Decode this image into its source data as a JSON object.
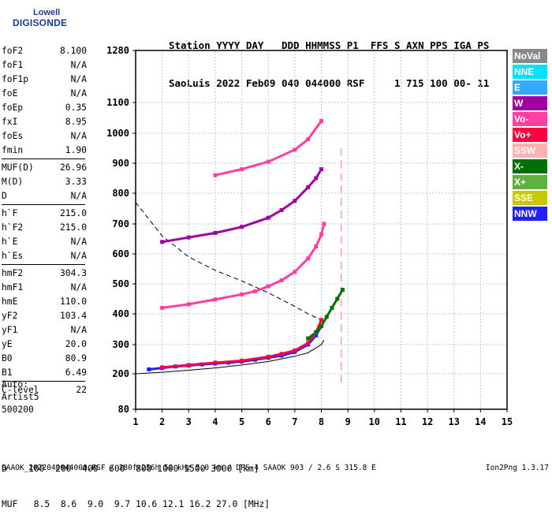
{
  "logo": {
    "line1": "Lowell",
    "line2": "DIGISONDE"
  },
  "header": {
    "line1": "Station YYYY DAY   DDD HHMMSS P1  FFS S AXN PPS IGA PS",
    "line2": "SaoLuis 2022 Feb09 040 044000 RSF     1 715 100 00- 11"
  },
  "params": [
    {
      "k": "foF2",
      "v": "8.100"
    },
    {
      "k": "foF1",
      "v": "N/A"
    },
    {
      "k": "foF1p",
      "v": "N/A"
    },
    {
      "k": "foE",
      "v": "N/A"
    },
    {
      "k": "foEp",
      "v": "0.35"
    },
    {
      "k": "fxI",
      "v": "8.95"
    },
    {
      "k": "foEs",
      "v": "N/A"
    },
    {
      "k": "fmin",
      "v": "1.90"
    },
    {
      "sep": true
    },
    {
      "k": "MUF(D)",
      "v": "26.96"
    },
    {
      "k": "M(D)",
      "v": "3.33"
    },
    {
      "k": "D",
      "v": "N/A"
    },
    {
      "sep": true
    },
    {
      "k": "h`F",
      "v": "215.0"
    },
    {
      "k": "h`F2",
      "v": "215.0"
    },
    {
      "k": "h`E",
      "v": "N/A"
    },
    {
      "k": "h`Es",
      "v": "N/A"
    },
    {
      "sep": true
    },
    {
      "k": "hmF2",
      "v": "304.3"
    },
    {
      "k": "hmF1",
      "v": "N/A"
    },
    {
      "k": "hmE",
      "v": "110.0"
    },
    {
      "k": "yF2",
      "v": "103.4"
    },
    {
      "k": "yF1",
      "v": "N/A"
    },
    {
      "k": "yE",
      "v": "20.0"
    },
    {
      "k": "B0",
      "v": "80.9"
    },
    {
      "k": "B1",
      "v": "6.49"
    },
    {
      "sep": true
    },
    {
      "k": "C-level",
      "v": "22"
    }
  ],
  "auto": {
    "line1": "Auto:",
    "line2": "Artist5",
    "line3": "500200"
  },
  "legend": [
    {
      "label": "NoVal",
      "color": "#888888"
    },
    {
      "label": "NNE",
      "color": "#00e0ff"
    },
    {
      "label": "E",
      "color": "#33aaff"
    },
    {
      "label": "W",
      "color": "#a000a0"
    },
    {
      "label": "Vo-",
      "color": "#ff40a0"
    },
    {
      "label": "Vo+",
      "color": "#ff0040"
    },
    {
      "label": "SSW",
      "color": "#ffb0b0"
    },
    {
      "label": "X-",
      "color": "#007000"
    },
    {
      "label": "X+",
      "color": "#60b040"
    },
    {
      "label": "SSE",
      "color": "#c8c800"
    },
    {
      "label": "NNW",
      "color": "#2020ff"
    }
  ],
  "footer": {
    "line1": "D    100  200  400  600  800 1000 1500 3000 [km]",
    "line2": "MUF   8.5  8.6  9.0  9.7 10.6 12.1 16.2 27.0 [MHz]"
  },
  "bottom": {
    "file": "SAAOK_2022040044000.RSF / 280fx256h 50 kHz 5.0 km / DPS-4 SAAOK 903 / 2.6 S 315.8 E",
    "version": "Ion2Png 1.3.17"
  },
  "chart_data": {
    "type": "scatter",
    "x_ticks": [
      1,
      2,
      3,
      4,
      5,
      6,
      7,
      8,
      9,
      10,
      11,
      12,
      13,
      14,
      15
    ],
    "y_ticks": [
      80,
      200,
      300,
      400,
      500,
      600,
      700,
      800,
      900,
      1000,
      1100,
      1280
    ],
    "xlim": [
      1,
      15
    ],
    "ylim": [
      80,
      1280
    ],
    "grid": true,
    "series": [
      {
        "name": "NNW",
        "color": "#2020ff",
        "x": [
          1.5,
          2.0,
          2.5,
          3.0,
          3.5,
          4.0,
          4.5,
          5.0,
          5.5,
          6.0,
          6.5,
          7.0,
          7.5,
          7.8,
          8.0
        ],
        "y": [
          215,
          220,
          225,
          228,
          232,
          235,
          238,
          242,
          248,
          255,
          262,
          275,
          300,
          330,
          360
        ]
      },
      {
        "name": "Vo+",
        "color": "#ff0040",
        "x": [
          2.0,
          3.0,
          4.0,
          5.0,
          6.0,
          6.5,
          7.0,
          7.5,
          7.8,
          8.0
        ],
        "y": [
          222,
          230,
          238,
          245,
          258,
          268,
          280,
          305,
          340,
          380
        ]
      },
      {
        "name": "Vo-",
        "color": "#ff40a0",
        "x": [
          2.0,
          3.0,
          4.0,
          5.0,
          5.5,
          6.0,
          6.5,
          7.0,
          7.5,
          7.8,
          8.0,
          8.1
        ],
        "y": [
          420,
          432,
          448,
          465,
          475,
          492,
          512,
          540,
          585,
          625,
          665,
          700
        ]
      },
      {
        "name": "X-",
        "color": "#007000",
        "x": [
          7.5,
          7.8,
          8.0,
          8.2,
          8.4,
          8.6,
          8.8
        ],
        "y": [
          320,
          340,
          360,
          390,
          420,
          450,
          480
        ]
      },
      {
        "name": "W",
        "color": "#a000a0",
        "x": [
          2.0,
          3.0,
          4.0,
          5.0,
          6.0,
          6.5,
          7.0,
          7.5,
          7.8,
          8.0
        ],
        "y": [
          640,
          655,
          670,
          690,
          720,
          745,
          775,
          820,
          850,
          880
        ]
      },
      {
        "name": "Vo-",
        "color": "#ff40a0",
        "x": [
          4.0,
          5.0,
          6.0,
          7.0,
          7.5,
          8.0
        ],
        "y": [
          860,
          880,
          905,
          945,
          980,
          1040
        ]
      }
    ],
    "trace_model": {
      "x": [
        1.0,
        2.0,
        3.0,
        4.0,
        5.0,
        6.0,
        7.0,
        7.5,
        8.0,
        8.1
      ],
      "y": [
        200,
        205,
        212,
        220,
        230,
        242,
        260,
        272,
        300,
        315
      ]
    },
    "dashed_curve": {
      "x": [
        1.0,
        2.0,
        3.0,
        4.0,
        5.0,
        6.0,
        7.0,
        7.5,
        8.0
      ],
      "y": [
        770,
        660,
        590,
        545,
        510,
        470,
        425,
        400,
        380
      ]
    },
    "dashed_marker": {
      "x": 8.75,
      "y": [
        170,
        950
      ]
    }
  }
}
